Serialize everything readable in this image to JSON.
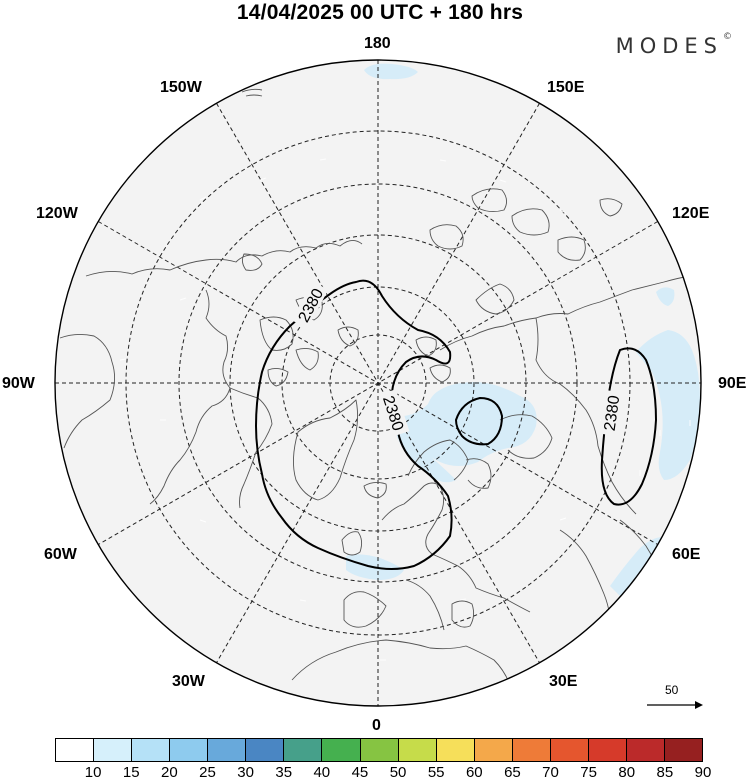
{
  "title": "14/04/2025  00 UTC  + 180 hrs",
  "brand": "MODES",
  "brand_mark": "©",
  "longitude_labels": {
    "top": "180",
    "bottom": "0",
    "left": "90W",
    "right": "90E",
    "w150": "150W",
    "e150": "150E",
    "w120": "120W",
    "e120": "120E",
    "w60": "60W",
    "e60": "60E",
    "w30": "30W",
    "e30": "30E"
  },
  "contour_labels": [
    "2380",
    "2380",
    "2380"
  ],
  "vector_reference": "50",
  "colorbar": {
    "colors": [
      "#ffffff",
      "#d6f0fb",
      "#b5e1f7",
      "#8ecbee",
      "#68a9db",
      "#4a86c3",
      "#46a08a",
      "#45b04f",
      "#86c442",
      "#c6dc4a",
      "#f6df5a",
      "#f4a84a",
      "#ee7b38",
      "#e5562e",
      "#d63a2a",
      "#bb2a2a",
      "#962020"
    ],
    "ticks": [
      "10",
      "15",
      "20",
      "25",
      "30",
      "35",
      "40",
      "45",
      "50",
      "55",
      "60",
      "65",
      "70",
      "75",
      "80",
      "85",
      "90"
    ]
  }
}
